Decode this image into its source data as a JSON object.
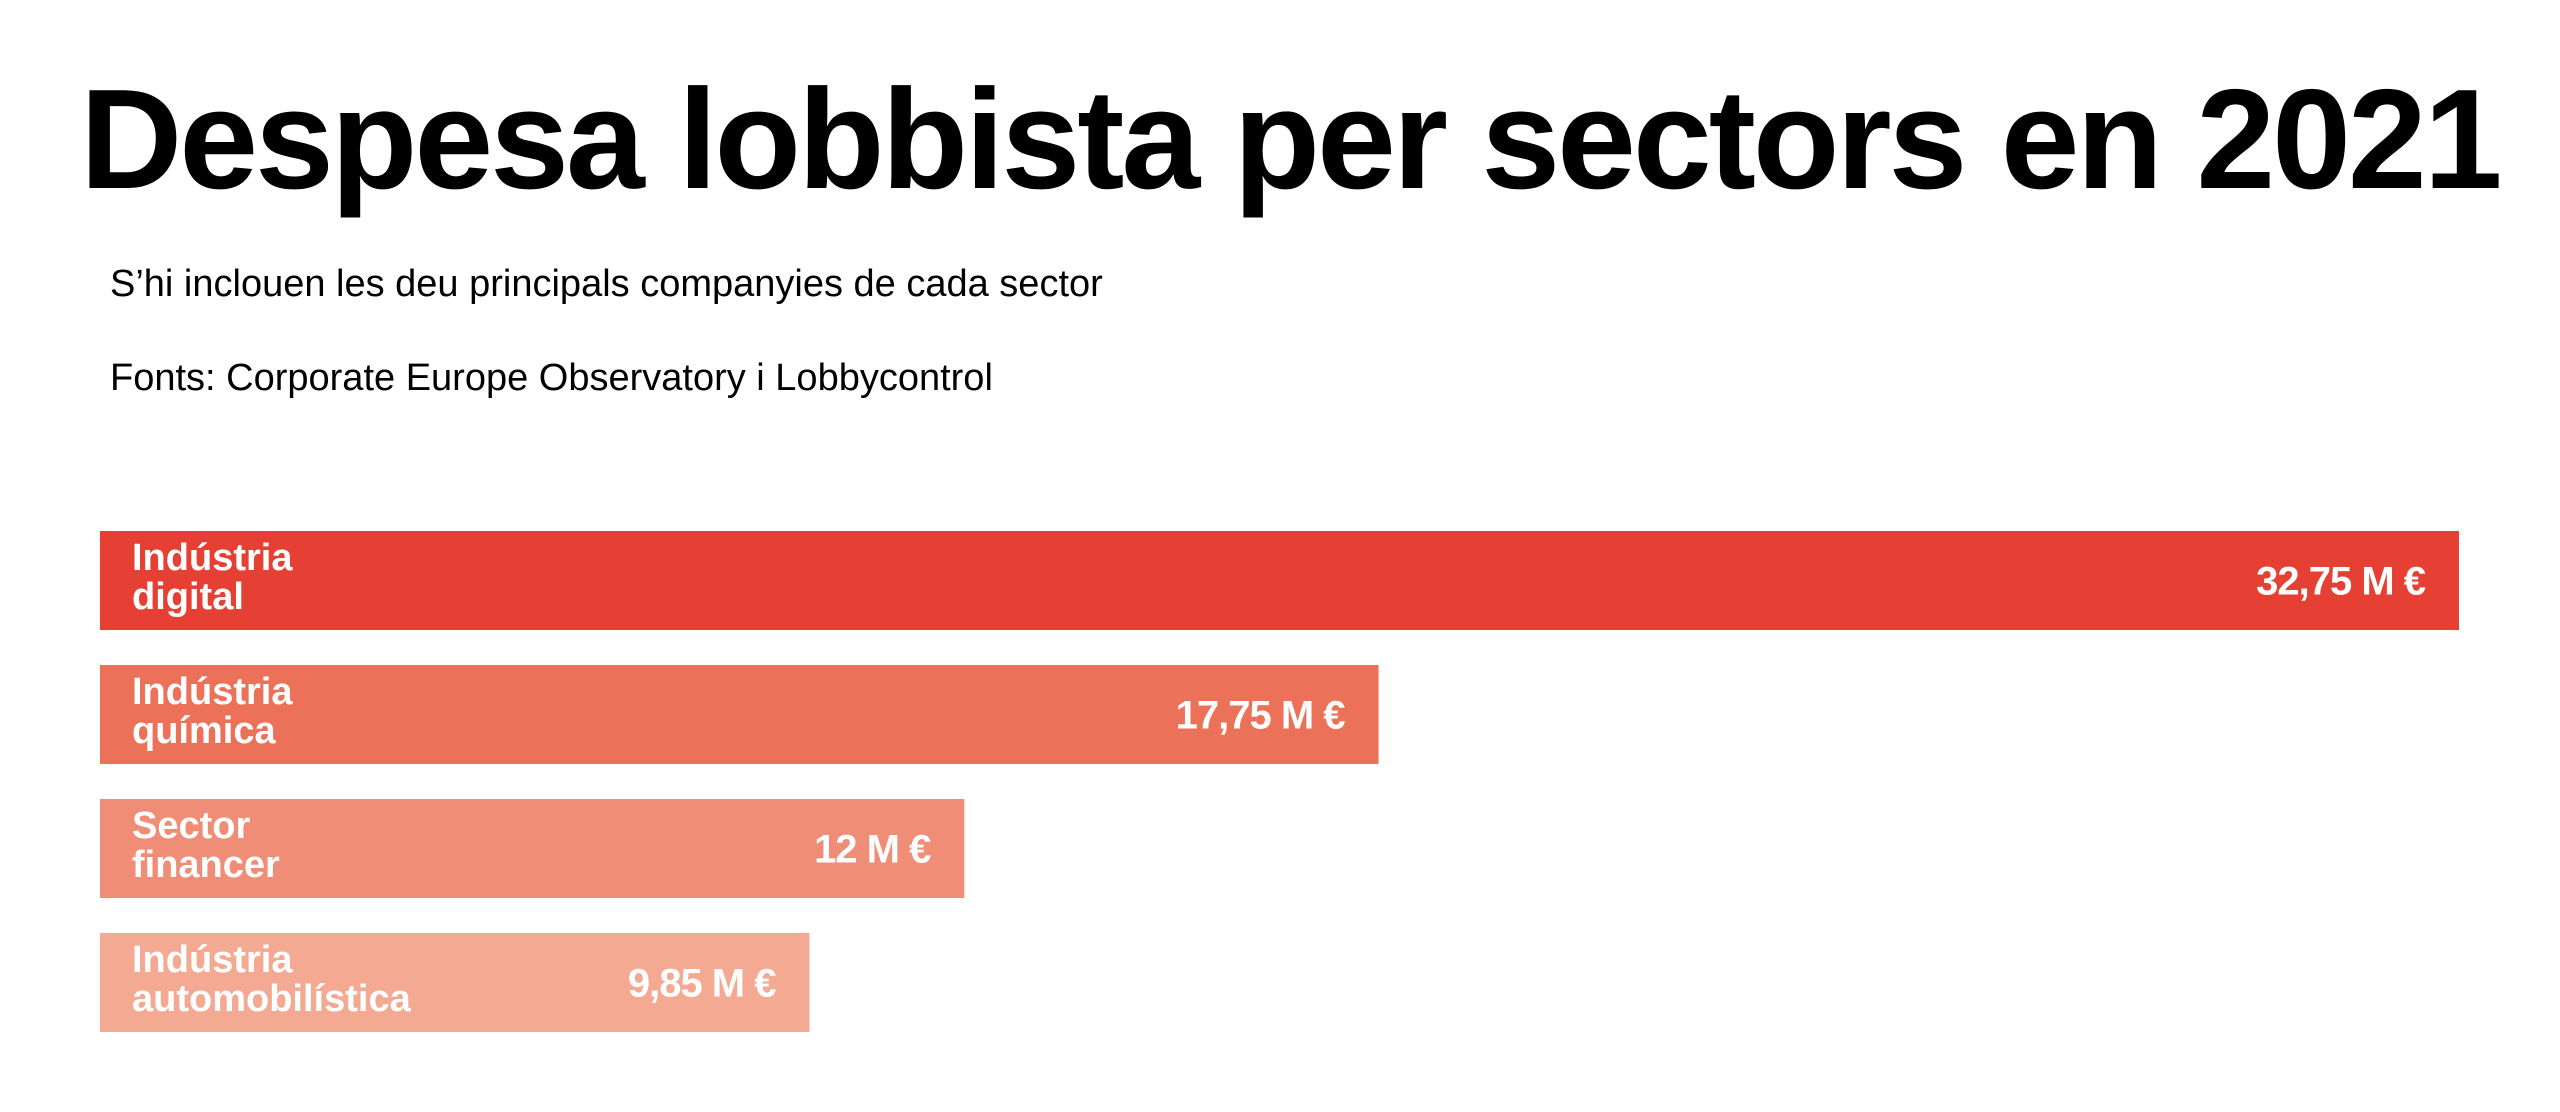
{
  "title": "Despesa lobbista per sectors en 2021",
  "subtitle": "S’hi inclouen les deu principals companyies de cada sector",
  "source": "Fonts: Corporate Europe Observatory i Lobbycontrol",
  "chart_data": {
    "type": "bar",
    "orientation": "horizontal",
    "title": "Despesa lobbista per sectors en 2021",
    "subtitle": "S’hi inclouen les deu principals companyies de cada sector",
    "xlabel": "",
    "ylabel": "",
    "unit": "M €",
    "grid": false,
    "legend": "none",
    "xlim": [
      0,
      32.75
    ],
    "categories": [
      [
        "Indústria",
        "digital"
      ],
      [
        "Indústria",
        "química"
      ],
      [
        "Sector",
        "financer"
      ],
      [
        "Indústria",
        "automobilística"
      ]
    ],
    "values": [
      32.75,
      17.75,
      12,
      9.85
    ],
    "value_labels": [
      "32,75 M €",
      "17,75 M €",
      "12 M €",
      "9,85 M €"
    ],
    "colors": [
      "#E63F33",
      "#EC7159",
      "#F08D76",
      "#F4A993"
    ]
  }
}
